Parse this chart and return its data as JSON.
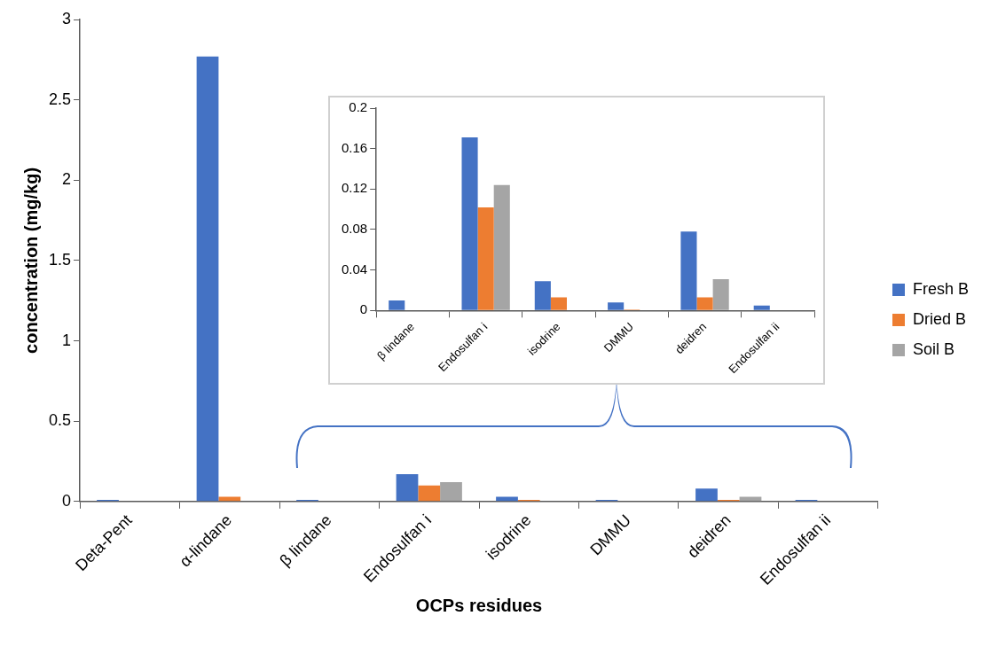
{
  "chart_data": [
    {
      "type": "bar",
      "xlabel": "OCPs residues",
      "ylabel": "concentration (mg/kg)",
      "categories": [
        "Deta-Pent",
        "α-lindane",
        "β lindane",
        "Endosulfan i",
        "isodrine",
        "DMMU",
        "deidren",
        "Endosulfan ii"
      ],
      "ylim": [
        0,
        3
      ],
      "yticks": [
        0,
        0.5,
        1,
        1.5,
        2,
        2.5,
        3
      ],
      "legend": "right",
      "series": [
        {
          "name": "Fresh B",
          "color": "#4472c4",
          "values": [
            0.01,
            2.77,
            0.01,
            0.17,
            0.03,
            0.01,
            0.08,
            0.01
          ]
        },
        {
          "name": "Dried B",
          "color": "#ed7d31",
          "values": [
            null,
            0.03,
            null,
            0.1,
            0.01,
            null,
            0.01,
            null
          ]
        },
        {
          "name": "Soil B",
          "color": "#a5a5a5",
          "values": [
            null,
            null,
            null,
            0.12,
            null,
            null,
            0.03,
            null
          ]
        }
      ]
    },
    {
      "type": "bar",
      "categories": [
        "β lindane",
        "Endosulfan i",
        "isodrine",
        "DMMU",
        "deidren",
        "Endosulfan ii"
      ],
      "ylim": [
        0,
        0.2
      ],
      "yticks": [
        0,
        0.04,
        0.08,
        0.12,
        0.16,
        0.2
      ],
      "series": [
        {
          "color": "#4472c4",
          "values": [
            0.01,
            0.171,
            0.029,
            0.008,
            0.078,
            0.005
          ]
        },
        {
          "color": "#ed7d31",
          "values": [
            null,
            0.102,
            0.013,
            0.001,
            0.013,
            null
          ]
        },
        {
          "color": "#a5a5a5",
          "values": [
            null,
            0.124,
            null,
            null,
            0.031,
            null
          ]
        }
      ]
    }
  ]
}
